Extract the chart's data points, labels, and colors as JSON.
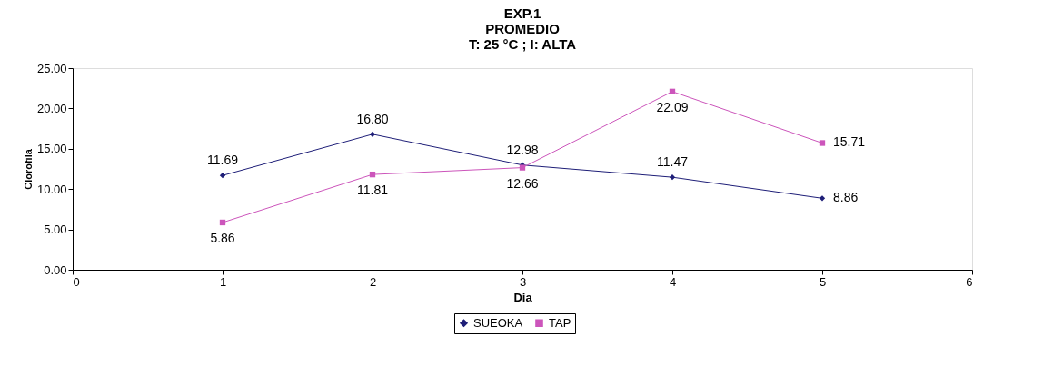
{
  "chart_data": {
    "type": "line",
    "title": "EXP.1\nPROMEDIO\nT: 25 °C ; I: ALTA",
    "xlabel": "Dia",
    "ylabel": "Clorofila",
    "x": [
      1,
      2,
      3,
      4,
      5
    ],
    "series": [
      {
        "name": "SUEOKA",
        "color": "#1f1f78",
        "marker": "diamond",
        "values": [
          11.69,
          16.8,
          12.98,
          11.47,
          8.86
        ],
        "value_labels": [
          "11.69",
          "16.80",
          "12.98",
          "11.47",
          "8.86"
        ]
      },
      {
        "name": "TAP",
        "color": "#cc55bb",
        "marker": "square",
        "values": [
          5.86,
          11.81,
          12.66,
          22.09,
          15.71
        ],
        "value_labels": [
          "5.86",
          "11.81",
          "12.66",
          "22.09",
          "15.71"
        ]
      }
    ],
    "xlim": [
      0,
      6
    ],
    "xticks": [
      0,
      1,
      2,
      3,
      4,
      5,
      6
    ],
    "ylim": [
      0,
      25
    ],
    "yticks": [
      {
        "value": 0,
        "label": "0.00"
      },
      {
        "value": 5,
        "label": "5.00"
      },
      {
        "value": 10,
        "label": "10.00"
      },
      {
        "value": 15,
        "label": "15.00"
      },
      {
        "value": 20,
        "label": "20.00"
      },
      {
        "value": 25,
        "label": "25.00"
      }
    ],
    "grid": false,
    "legend": "bottom",
    "line_style": "solid"
  }
}
